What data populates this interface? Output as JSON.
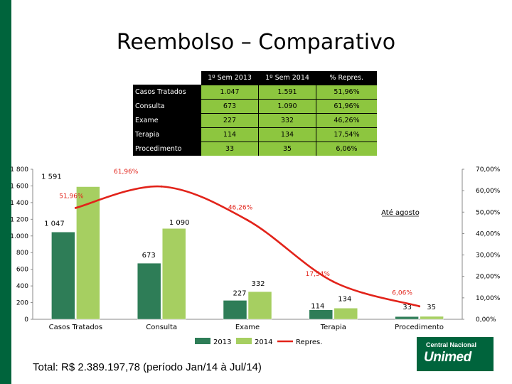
{
  "title": "Reembolso – Comparativo",
  "table": {
    "headers": [
      "1º Sem 2013",
      "1º Sem 2014",
      "% Repres."
    ],
    "rows": [
      {
        "label": "Casos Tratados",
        "v2013": "1.047",
        "v2014": "1.591",
        "pct": "51,96%"
      },
      {
        "label": "Consulta",
        "v2013": "673",
        "v2014": "1.090",
        "pct": "61,96%"
      },
      {
        "label": "Exame",
        "v2013": "227",
        "v2014": "332",
        "pct": "46,26%"
      },
      {
        "label": "Terapia",
        "v2013": "114",
        "v2014": "134",
        "pct": "17,54%"
      },
      {
        "label": "Procedimento",
        "v2013": "33",
        "v2014": "35",
        "pct": "6,06%"
      }
    ]
  },
  "chart_data": {
    "type": "bar",
    "categories": [
      "Casos Tratados",
      "Consulta",
      "Exame",
      "Terapia",
      "Procedimento"
    ],
    "series": [
      {
        "name": "2013",
        "type": "bar",
        "axis": "left",
        "color": "#2e7d57",
        "values": [
          1047,
          673,
          227,
          114,
          33
        ],
        "labels": [
          "1 047",
          "673",
          "227",
          "114",
          "33"
        ]
      },
      {
        "name": "2014",
        "type": "bar",
        "axis": "left",
        "color": "#a6cf61",
        "values": [
          1591,
          1090,
          332,
          134,
          35
        ],
        "labels": [
          "1 591",
          "1 090",
          "332",
          "134",
          "35"
        ]
      },
      {
        "name": "Repres.",
        "type": "line",
        "axis": "right",
        "color": "#e2231a",
        "values": [
          51.96,
          61.96,
          46.26,
          17.54,
          6.06
        ],
        "labels": [
          "51,96%",
          "61,96%",
          "46,26%",
          "17,54%",
          "6,06%"
        ]
      }
    ],
    "y_left": {
      "min": 0,
      "max": 1800,
      "ticks": [
        0,
        200,
        400,
        600,
        800,
        1000,
        1200,
        1400,
        1600,
        1800
      ],
      "tick_labels": [
        "0",
        "200",
        "400",
        "600",
        "800",
        "1.000",
        "1 200",
        "1 400",
        "1 600",
        "1 800"
      ]
    },
    "y_right": {
      "min": 0,
      "max": 70,
      "ticks": [
        0,
        10,
        20,
        30,
        40,
        50,
        60,
        70
      ],
      "tick_labels": [
        "0,00%",
        "10,00%",
        "20,00%",
        "30,00%",
        "40,00%",
        "50,00%",
        "60,00%",
        "70,00%"
      ]
    },
    "annotation": "Até agosto",
    "legend_position": "bottom"
  },
  "footer": "Total: R$ 2.389.197,78 (período Jan/14 à Jul/14)",
  "logo": {
    "line1": "Central Nacional",
    "line2": "Unimed"
  },
  "colors": {
    "brand_green": "#00643c",
    "bar_2013": "#2e7d57",
    "bar_2014": "#a6cf61",
    "line": "#e2231a",
    "table_cell": "#8dc63f"
  }
}
